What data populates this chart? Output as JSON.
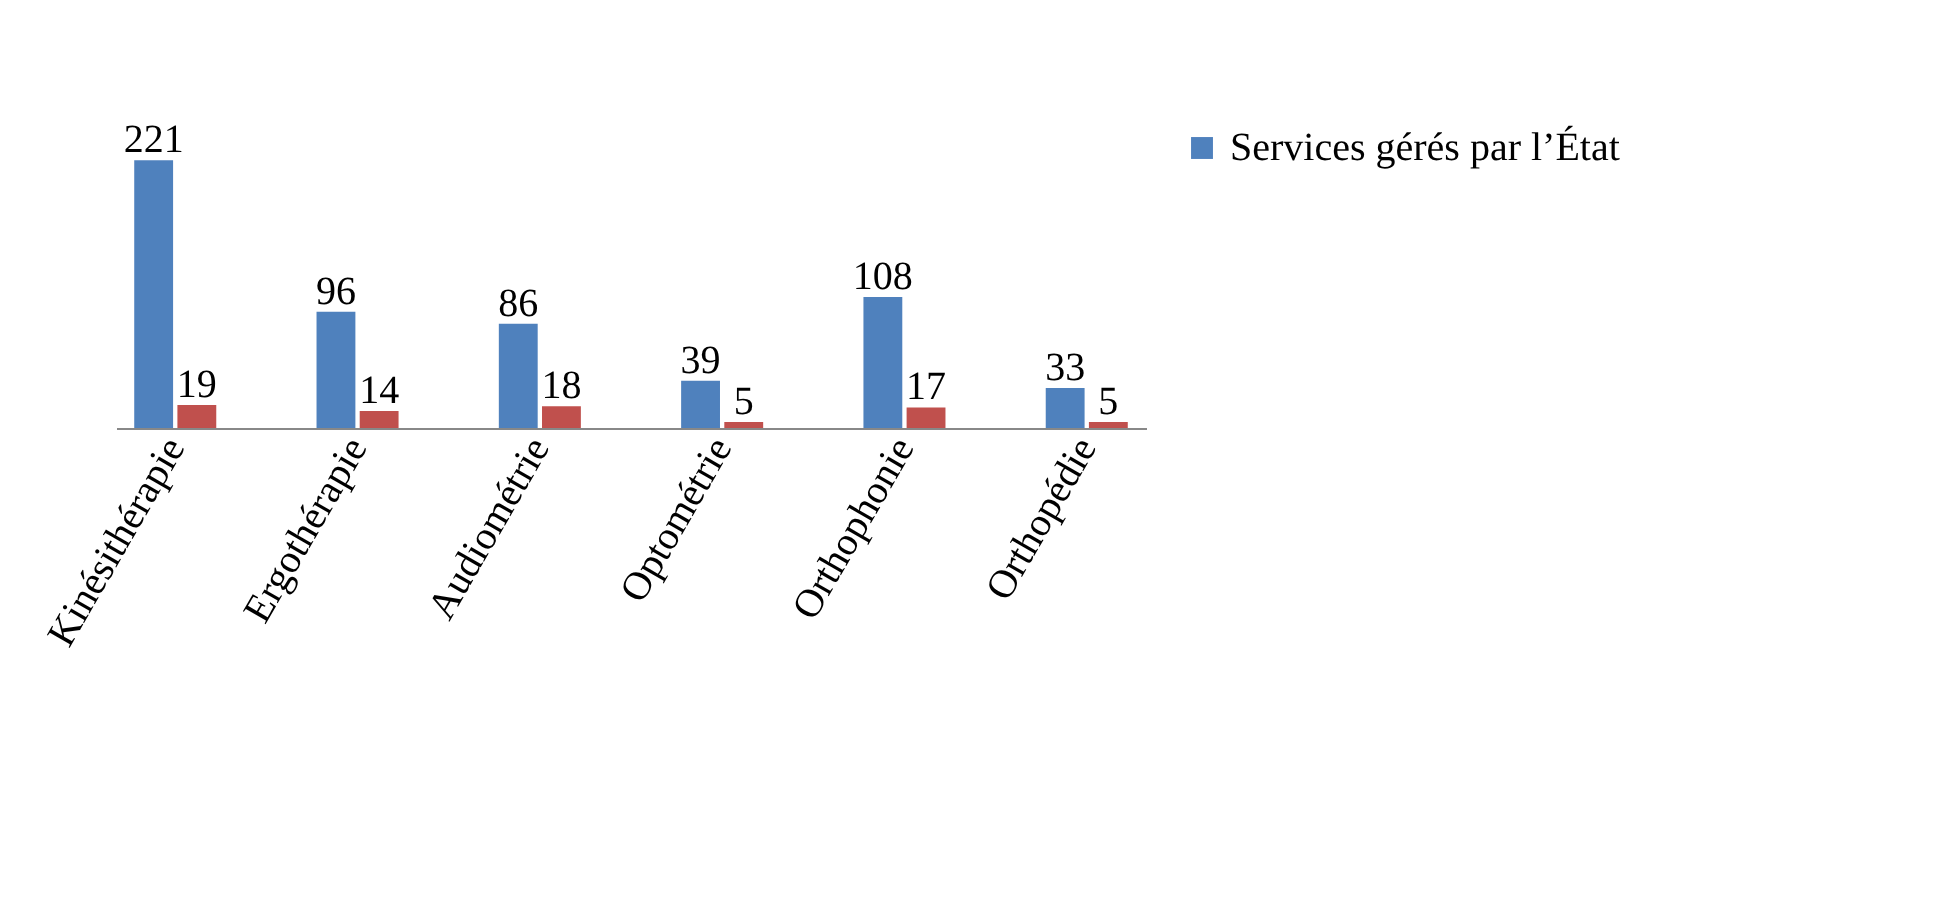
{
  "chart_data": {
    "type": "bar",
    "categories": [
      "Kinésithérapie",
      "Ergothérapie",
      "Audiométrie",
      "Optométrie",
      "Orthophonie",
      "Orthopédie"
    ],
    "series": [
      {
        "name": "Services gérés par l’État",
        "color": "#4f81bd",
        "values": [
          221,
          96,
          86,
          39,
          108,
          33
        ]
      },
      {
        "color": "#c0504d",
        "values": [
          19,
          14,
          18,
          5,
          17,
          5
        ]
      }
    ],
    "data_labels": true,
    "legend": "right",
    "grid": false
  }
}
